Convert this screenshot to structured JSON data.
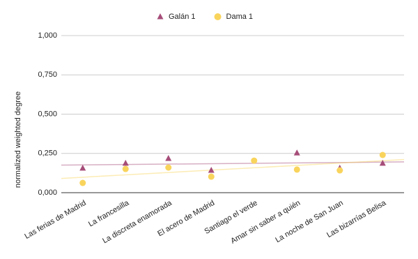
{
  "chart_data": {
    "type": "scatter",
    "y_label": "normalized weighted degree",
    "categories": [
      "Las ferias de Madrid",
      "La francesilla",
      "La discreta enamorada",
      "El acero de Madrid",
      "Santiago el verde",
      "Amar sin saber a quién",
      "La noche de San Juan",
      "Las bizarrías Belisa"
    ],
    "series": [
      {
        "name": "Galán 1",
        "color": "#a64d79",
        "marker": "triangle",
        "values": [
          0.156,
          0.187,
          0.218,
          0.142,
          null,
          0.253,
          0.156,
          0.187
        ]
      },
      {
        "name": "Dama 1",
        "color": "#f9d45c",
        "marker": "circle",
        "values": [
          0.062,
          0.151,
          0.16,
          0.102,
          0.204,
          0.147,
          0.142,
          0.24
        ]
      }
    ],
    "ylim": [
      0,
      1
    ],
    "yticks": [
      {
        "value": 0,
        "label": "0,000"
      },
      {
        "value": 0.25,
        "label": "0,250"
      },
      {
        "value": 0.5,
        "label": "0,500"
      },
      {
        "value": 0.75,
        "label": "0,750"
      },
      {
        "value": 1,
        "label": "1,000"
      }
    ],
    "grid": true,
    "trendline": true,
    "legend": "top"
  }
}
